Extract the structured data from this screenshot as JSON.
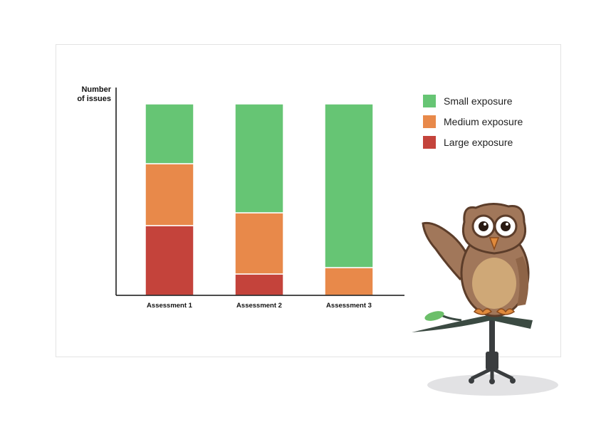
{
  "chart_data": {
    "type": "bar",
    "stacked": true,
    "categories": [
      "Assessment 1",
      "Assessment 2",
      "Assessment 3"
    ],
    "series": [
      {
        "name": "Large exposure",
        "color": "#c4433b",
        "values": [
          98,
          30,
          0
        ]
      },
      {
        "name": "Medium exposure",
        "color": "#e8894a",
        "values": [
          87,
          86,
          39
        ]
      },
      {
        "name": "Small exposure",
        "color": "#66c574",
        "values": [
          84,
          153,
          230
        ]
      }
    ],
    "ylabel": "Number\nof issues",
    "ylim": [
      0,
      291
    ],
    "legend_order": [
      "Small exposure",
      "Medium exposure",
      "Large exposure"
    ],
    "legend_position": "right",
    "grid": false
  },
  "legend": [
    {
      "label": "Small exposure",
      "color": "#66c574"
    },
    {
      "label": "Medium exposure",
      "color": "#e8894a"
    },
    {
      "label": "Large exposure",
      "color": "#c4433b"
    }
  ],
  "ylabel_lines": [
    "Number",
    "of issues"
  ],
  "mascot": {
    "icon": "owl-mascot-icon"
  }
}
